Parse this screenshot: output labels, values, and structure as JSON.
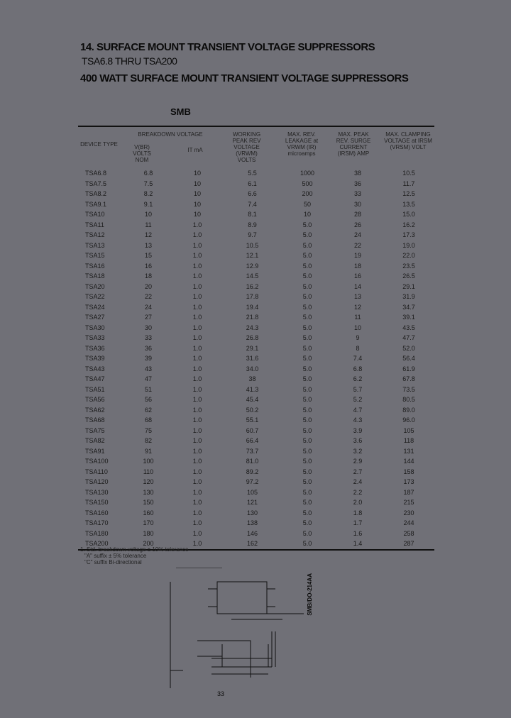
{
  "titles": {
    "section": "14. SURFACE MOUNT TRANSIENT VOLTAGE SUPPRESSORS",
    "range": "TSA6.8 THRU TSA200",
    "subtitle": "400 WATT SURFACE MOUNT TRANSIENT VOLTAGE SUPPRESSORS",
    "package": "SMB"
  },
  "table": {
    "headers": {
      "device": "DEVICE TYPE",
      "breakdown": "BREAKDOWN VOLTAGE",
      "vbr": "V(BR) VOLTS NOM",
      "it": "IT mA",
      "vrwm": "WORKING PEAK REV VOLTAGE (VRWM) VOLTS",
      "ir": "MAX. REV. LEAKAGE at VRWM (IR) microamps",
      "ipp": "MAX. PEAK REV. SURGE CURRENT (IRSM) AMP",
      "vc": "MAX. CLAMPING VOLTAGE at IRSM (VRSM) VOLT"
    },
    "rows": [
      [
        "TSA6.8",
        "6.8",
        "10",
        "5.5",
        "1000",
        "38",
        "10.5"
      ],
      [
        "TSA7.5",
        "7.5",
        "10",
        "6.1",
        "500",
        "36",
        "11.7"
      ],
      [
        "TSA8.2",
        "8.2",
        "10",
        "6.6",
        "200",
        "33",
        "12.5"
      ],
      [
        "TSA9.1",
        "9.1",
        "10",
        "7.4",
        "50",
        "30",
        "13.5"
      ],
      [
        "TSA10",
        "10",
        "10",
        "8.1",
        "10",
        "28",
        "15.0"
      ],
      [
        "TSA11",
        "11",
        "1.0",
        "8.9",
        "5.0",
        "26",
        "16.2"
      ],
      [
        "TSA12",
        "12",
        "1.0",
        "9.7",
        "5.0",
        "24",
        "17.3"
      ],
      [
        "TSA13",
        "13",
        "1.0",
        "10.5",
        "5.0",
        "22",
        "19.0"
      ],
      [
        "TSA15",
        "15",
        "1.0",
        "12.1",
        "5.0",
        "19",
        "22.0"
      ],
      [
        "TSA16",
        "16",
        "1.0",
        "12.9",
        "5.0",
        "18",
        "23.5"
      ],
      [
        "TSA18",
        "18",
        "1.0",
        "14.5",
        "5.0",
        "16",
        "26.5"
      ],
      [
        "TSA20",
        "20",
        "1.0",
        "16.2",
        "5.0",
        "14",
        "29.1"
      ],
      [
        "TSA22",
        "22",
        "1.0",
        "17.8",
        "5.0",
        "13",
        "31.9"
      ],
      [
        "TSA24",
        "24",
        "1.0",
        "19.4",
        "5.0",
        "12",
        "34.7"
      ],
      [
        "TSA27",
        "27",
        "1.0",
        "21.8",
        "5.0",
        "11",
        "39.1"
      ],
      [
        "TSA30",
        "30",
        "1.0",
        "24.3",
        "5.0",
        "10",
        "43.5"
      ],
      [
        "TSA33",
        "33",
        "1.0",
        "26.8",
        "5.0",
        "9",
        "47.7"
      ],
      [
        "TSA36",
        "36",
        "1.0",
        "29.1",
        "5.0",
        "8",
        "52.0"
      ],
      [
        "TSA39",
        "39",
        "1.0",
        "31.6",
        "5.0",
        "7.4",
        "56.4"
      ],
      [
        "TSA43",
        "43",
        "1.0",
        "34.0",
        "5.0",
        "6.8",
        "61.9"
      ],
      [
        "TSA47",
        "47",
        "1.0",
        "38",
        "5.0",
        "6.2",
        "67.8"
      ],
      [
        "TSA51",
        "51",
        "1.0",
        "41.3",
        "5.0",
        "5.7",
        "73.5"
      ],
      [
        "TSA56",
        "56",
        "1.0",
        "45.4",
        "5.0",
        "5.2",
        "80.5"
      ],
      [
        "TSA62",
        "62",
        "1.0",
        "50.2",
        "5.0",
        "4.7",
        "89.0"
      ],
      [
        "TSA68",
        "68",
        "1.0",
        "55.1",
        "5.0",
        "4.3",
        "96.0"
      ],
      [
        "TSA75",
        "75",
        "1.0",
        "60.7",
        "5.0",
        "3.9",
        "105"
      ],
      [
        "TSA82",
        "82",
        "1.0",
        "66.4",
        "5.0",
        "3.6",
        "118"
      ],
      [
        "TSA91",
        "91",
        "1.0",
        "73.7",
        "5.0",
        "3.2",
        "131"
      ],
      [
        "TSA100",
        "100",
        "1.0",
        "81.0",
        "5.0",
        "2.9",
        "144"
      ],
      [
        "TSA110",
        "110",
        "1.0",
        "89.2",
        "5.0",
        "2.7",
        "158"
      ],
      [
        "TSA120",
        "120",
        "1.0",
        "97.2",
        "5.0",
        "2.4",
        "173"
      ],
      [
        "TSA130",
        "130",
        "1.0",
        "105",
        "5.0",
        "2.2",
        "187"
      ],
      [
        "TSA150",
        "150",
        "1.0",
        "121",
        "5.0",
        "2.0",
        "215"
      ],
      [
        "TSA160",
        "160",
        "1.0",
        "130",
        "5.0",
        "1.8",
        "230"
      ],
      [
        "TSA170",
        "170",
        "1.0",
        "138",
        "5.0",
        "1.7",
        "244"
      ],
      [
        "TSA180",
        "180",
        "1.0",
        "146",
        "5.0",
        "1.6",
        "258"
      ],
      [
        "TSA200",
        "200",
        "1.0",
        "162",
        "5.0",
        "1.4",
        "287"
      ]
    ]
  },
  "notes": [
    "1. Std. breakdown voltage ± 10% tolerance",
    "\"A\" suffix ± 5% tolerance",
    "\"C\" suffix  Bi-directional"
  ],
  "package_label": "SMB/DO-214AA",
  "page_number": "33"
}
